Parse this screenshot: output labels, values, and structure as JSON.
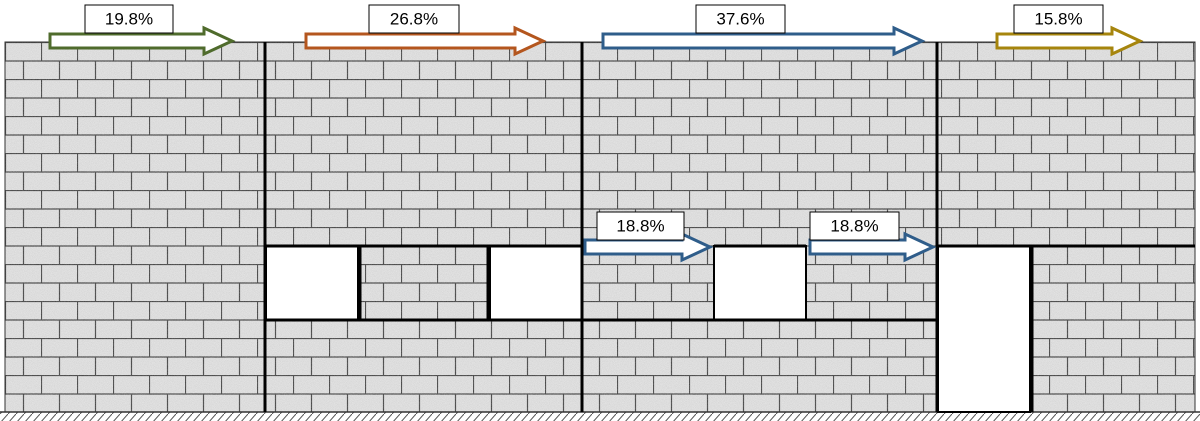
{
  "arrows": [
    {
      "label": "19.8%"
    },
    {
      "label": "26.8%"
    },
    {
      "label": "37.6%"
    },
    {
      "label": "15.8%"
    },
    {
      "label": "18.8%"
    },
    {
      "label": "18.8%"
    }
  ]
}
